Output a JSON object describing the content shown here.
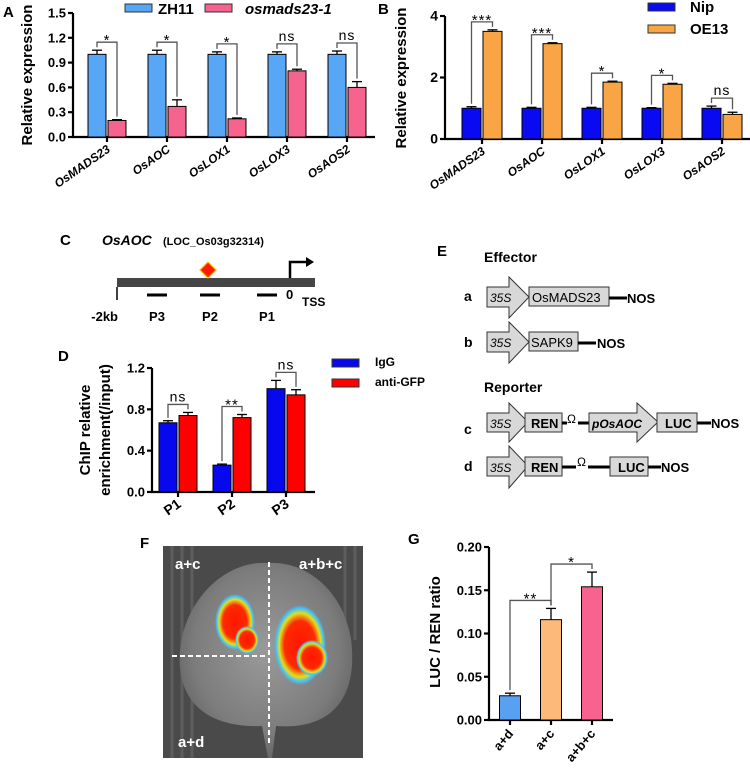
{
  "chart_data": [
    {
      "panel_label": "A",
      "type": "bar",
      "ylabel": "Relative expression",
      "ylim": [
        0,
        1.5
      ],
      "yticks": [
        "0.0",
        "0.3",
        "0.6",
        "0.9",
        "1.2",
        "1.5"
      ],
      "categories": [
        "OsMADS23",
        "OsAOC",
        "OsLOX1",
        "OsLOX3",
        "OsAOS2"
      ],
      "series": [
        {
          "name": "ZH11",
          "color": "#58a6f6",
          "values": [
            1.0,
            1.0,
            1.0,
            1.0,
            1.0
          ],
          "errors": [
            0.05,
            0.05,
            0.03,
            0.03,
            0.04
          ]
        },
        {
          "name": "osmads23-1",
          "color": "#f5638f",
          "values": [
            0.2,
            0.37,
            0.22,
            0.8,
            0.6
          ],
          "errors": [
            0.01,
            0.08,
            0.01,
            0.02,
            0.07
          ]
        }
      ],
      "comparisons": [
        {
          "category": 0,
          "label": "*"
        },
        {
          "category": 1,
          "label": "*"
        },
        {
          "category": 2,
          "label": "*"
        },
        {
          "category": 3,
          "label": "ns"
        },
        {
          "category": 4,
          "label": "ns"
        }
      ],
      "legend": "top"
    },
    {
      "panel_label": "B",
      "type": "bar",
      "ylabel": "Relative expression",
      "ylim": [
        0,
        4
      ],
      "yticks": [
        "0",
        "2",
        "4"
      ],
      "categories": [
        "OsMADS23",
        "OsAOC",
        "OsLOX1",
        "OsLOX3",
        "OsAOS2"
      ],
      "series": [
        {
          "name": "Nip",
          "color": "#0a0af2",
          "values": [
            1.0,
            1.0,
            1.0,
            1.0,
            1.0
          ],
          "errors": [
            0.05,
            0.03,
            0.03,
            0.02,
            0.07
          ]
        },
        {
          "name": "OE13",
          "color": "#f9a445",
          "values": [
            3.5,
            3.1,
            1.85,
            1.78,
            0.8
          ],
          "errors": [
            0.05,
            0.03,
            0.03,
            0.03,
            0.07
          ]
        }
      ],
      "comparisons": [
        {
          "category": 0,
          "label": "***"
        },
        {
          "category": 1,
          "label": "***"
        },
        {
          "category": 2,
          "label": "*"
        },
        {
          "category": 3,
          "label": "*"
        },
        {
          "category": 4,
          "label": "ns"
        }
      ],
      "legend": "top-right"
    },
    {
      "panel_label": "D",
      "type": "bar",
      "ylabel": [
        "ChIP relative",
        "enrichment(/input)"
      ],
      "ylim": [
        0,
        1.2
      ],
      "yticks": [
        "0.0",
        "0.4",
        "0.8",
        "1.2"
      ],
      "categories": [
        "P1",
        "P2",
        "P3"
      ],
      "series": [
        {
          "name": "IgG",
          "color": "#0808ee",
          "values": [
            0.67,
            0.26,
            1.0
          ],
          "errors": [
            0.02,
            0.01,
            0.08
          ]
        },
        {
          "name": "anti-GFP",
          "color": "#ff0000",
          "values": [
            0.74,
            0.72,
            0.94
          ],
          "errors": [
            0.03,
            0.03,
            0.05
          ]
        }
      ],
      "comparisons": [
        {
          "category": 0,
          "label": "ns"
        },
        {
          "category": 1,
          "label": "**"
        },
        {
          "category": 2,
          "label": "ns"
        }
      ],
      "legend": "right"
    },
    {
      "panel_label": "G",
      "type": "bar",
      "ylabel": "LUC / REN  ratio",
      "ylim": [
        0,
        0.2
      ],
      "yticks": [
        "0.00",
        "0.05",
        "0.10",
        "0.15",
        "0.20"
      ],
      "categories": [
        "a+d",
        "a+c",
        "a+b+c"
      ],
      "values": [
        0.028,
        0.116,
        0.154
      ],
      "errors": [
        0.003,
        0.013,
        0.017
      ],
      "colors": [
        "#58a0f2",
        "#fdb97a",
        "#f7628f"
      ],
      "comparisons": [
        {
          "pair": [
            0,
            1
          ],
          "label": "**"
        },
        {
          "pair": [
            1,
            2
          ],
          "label": "*"
        }
      ]
    }
  ],
  "panel_c": {
    "label": "C",
    "gene": "OsAOC",
    "locus": "(LOC_Os03g32314)",
    "start": "-2kb",
    "zero": "0",
    "tss": "TSS",
    "probes": [
      "P3",
      "P2",
      "P1"
    ],
    "colors": {
      "promoter": "#454545",
      "site": "#ff1a00",
      "site_edge": "#f5c400"
    }
  },
  "panel_e": {
    "label": "E",
    "effector_title": "Effector",
    "reporter_title": "Reporter",
    "a": {
      "letter": "a",
      "promoter": "35S",
      "gene": "OsMADS23",
      "terminator": "NOS"
    },
    "b": {
      "letter": "b",
      "promoter": "35S",
      "gene": "SAPK9",
      "terminator": "NOS"
    },
    "c": {
      "letter": "c",
      "promoter": "35S",
      "gene": "REN",
      "omega": "Ω",
      "promoter2": "pOsAOC",
      "reporter": "LUC",
      "terminator": "NOS"
    },
    "d": {
      "letter": "d",
      "promoter": "35S",
      "gene": "REN",
      "omega": "Ω",
      "reporter": "LUC",
      "terminator": "NOS"
    }
  },
  "panel_f": {
    "label": "F",
    "labels": [
      "a+c",
      "a+b+c",
      "a+d"
    ]
  }
}
